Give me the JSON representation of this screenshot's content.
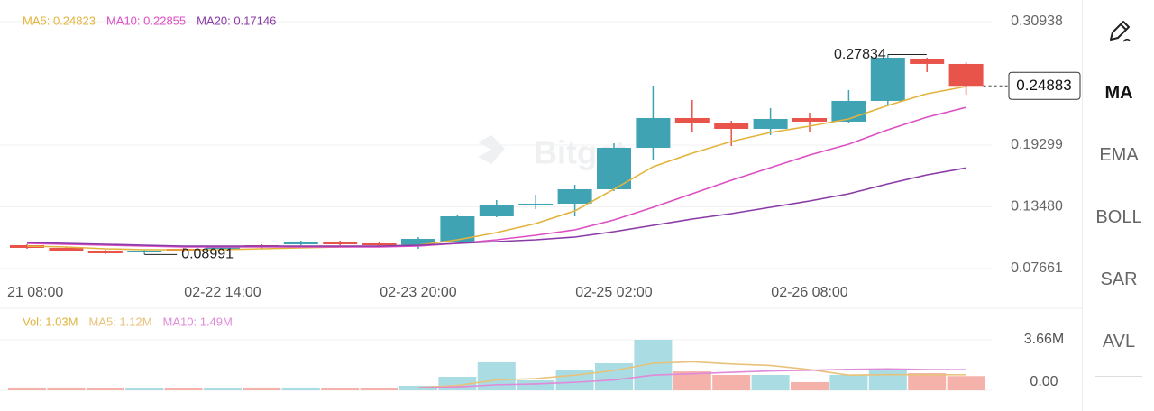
{
  "chart_data": [
    {
      "type": "candlestick",
      "categories": [
        "21 08:00",
        null,
        null,
        null,
        null,
        "02-22 14:00",
        null,
        null,
        null,
        null,
        "02-23 20:00",
        null,
        null,
        null,
        null,
        "02-25 02:00",
        null,
        null,
        null,
        null,
        "02-26 08:00",
        null,
        null,
        null,
        null
      ],
      "open": [
        0.0987,
        0.09615,
        0.0936,
        0.0919,
        0.0953,
        0.0953,
        0.0987,
        0.09955,
        0.1021,
        0.1004,
        0.0987,
        0.1021,
        0.12589,
        0.13608,
        0.13778,
        0.15138,
        0.19046,
        0.2185,
        0.2134,
        0.2083,
        0.2185,
        0.2151,
        0.23464,
        0.27457,
        0.26947
      ],
      "high": [
        0.09955,
        0.097,
        0.09445,
        0.09445,
        0.09615,
        0.09785,
        0.09955,
        0.10295,
        0.10295,
        0.10125,
        0.10635,
        0.12759,
        0.14118,
        0.14628,
        0.15562,
        0.19471,
        0.24908,
        0.23549,
        0.21595,
        0.22784,
        0.22359,
        0.24484,
        0.27834,
        0.27542,
        0.27117
      ],
      "low": [
        0.0953,
        0.09275,
        0.0902,
        0.08991,
        0.0919,
        0.0936,
        0.0953,
        0.0987,
        0.0987,
        0.097,
        0.0953,
        0.10125,
        0.12504,
        0.13269,
        0.12589,
        0.14968,
        0.17941,
        0.20575,
        0.19216,
        0.20235,
        0.20575,
        0.2134,
        0.23039,
        0.26183,
        0.24058
      ],
      "close": [
        0.09615,
        0.0936,
        0.09105,
        0.0936,
        0.0936,
        0.097,
        0.097,
        0.1021,
        0.09955,
        0.0987,
        0.10465,
        0.12589,
        0.13693,
        0.13778,
        0.15138,
        0.19046,
        0.2185,
        0.2134,
        0.2083,
        0.21765,
        0.2151,
        0.23464,
        0.27542,
        0.26947,
        0.24883
      ],
      "up_color": "#3fa3b4",
      "down_color": "#e8534a",
      "series": [
        {
          "name": "MA5: 0.24823",
          "color": "#e2b43c",
          "values": [
            0.09785,
            0.097,
            0.0953,
            0.09445,
            0.09445,
            0.09445,
            0.0953,
            0.09615,
            0.097,
            0.09785,
            0.0987,
            0.1038,
            0.11059,
            0.11909,
            0.13099,
            0.15138,
            0.17262,
            0.18536,
            0.19641,
            0.2049,
            0.21085,
            0.21765,
            0.23039,
            0.24144,
            0.24823
          ]
        },
        {
          "name": "MA10: 0.22855",
          "color": "#dc4fc4",
          "values": [
            0.1004,
            0.09955,
            0.0987,
            0.09785,
            0.097,
            0.097,
            0.097,
            0.097,
            0.097,
            0.097,
            0.09785,
            0.1004,
            0.1038,
            0.10805,
            0.11314,
            0.12249,
            0.13438,
            0.14713,
            0.15987,
            0.17177,
            0.18366,
            0.19386,
            0.20745,
            0.21935,
            0.22855
          ]
        },
        {
          "name": "MA20: 0.17146",
          "color": "#8a3aa6",
          "values": [
            0.10125,
            0.1004,
            0.09955,
            0.0987,
            0.09785,
            0.09785,
            0.09785,
            0.09785,
            0.09785,
            0.09785,
            0.0987,
            0.1004,
            0.1021,
            0.1038,
            0.10635,
            0.11144,
            0.11739,
            0.12334,
            0.12844,
            0.13438,
            0.14033,
            0.14713,
            0.15647,
            0.16497,
            0.17146
          ]
        }
      ],
      "ylim": [
        0.07661,
        0.30938
      ],
      "yticks": [
        0.07661,
        {
          "value": 0.1348,
          "label": "0.13480"
        },
        0.19299,
        0.30938
      ],
      "grid": true,
      "last_price": 0.24883,
      "max_label": 0.27834,
      "min_label": 0.08991
    },
    {
      "type": "bar",
      "name": "Vol: 1.03M",
      "name_color": "#e2b43c",
      "values": [
        0.2,
        0.2,
        0.13,
        0.13,
        0.13,
        0.13,
        0.2,
        0.2,
        0.13,
        0.13,
        0.33,
        0.98,
        2.03,
        0.72,
        1.44,
        1.96,
        3.66,
        1.37,
        1.11,
        1.11,
        0.59,
        1.11,
        1.5,
        1.24,
        1.03
      ],
      "up_color": "#a9dce3",
      "down_color": "#f5b2ab",
      "series": [
        {
          "name": "MA5: 1.12M",
          "color": "#e8c27a",
          "values": [
            null,
            null,
            null,
            null,
            null,
            null,
            null,
            null,
            null,
            null,
            0.2,
            0.35,
            0.75,
            0.85,
            1.1,
            1.43,
            1.96,
            2.07,
            1.91,
            1.8,
            1.5,
            1.1,
            1.13,
            1.13,
            1.12
          ]
        },
        {
          "name": "MA10: 1.49M",
          "color": "#e08ad8",
          "values": [
            null,
            null,
            null,
            null,
            null,
            null,
            null,
            null,
            null,
            null,
            0.18,
            0.25,
            0.4,
            0.46,
            0.58,
            0.75,
            1.1,
            1.2,
            1.3,
            1.4,
            1.45,
            1.52,
            1.55,
            1.5,
            1.49
          ]
        }
      ],
      "ylim": [
        0,
        3.66
      ],
      "yticks": [
        {
          "value": 0,
          "label": "0.00"
        },
        {
          "value": 3.66,
          "label": "3.66M"
        }
      ]
    }
  ],
  "watermark": "Bitget",
  "sidebar": {
    "indicators": [
      "MA",
      "EMA",
      "BOLL",
      "SAR",
      "AVL"
    ]
  }
}
